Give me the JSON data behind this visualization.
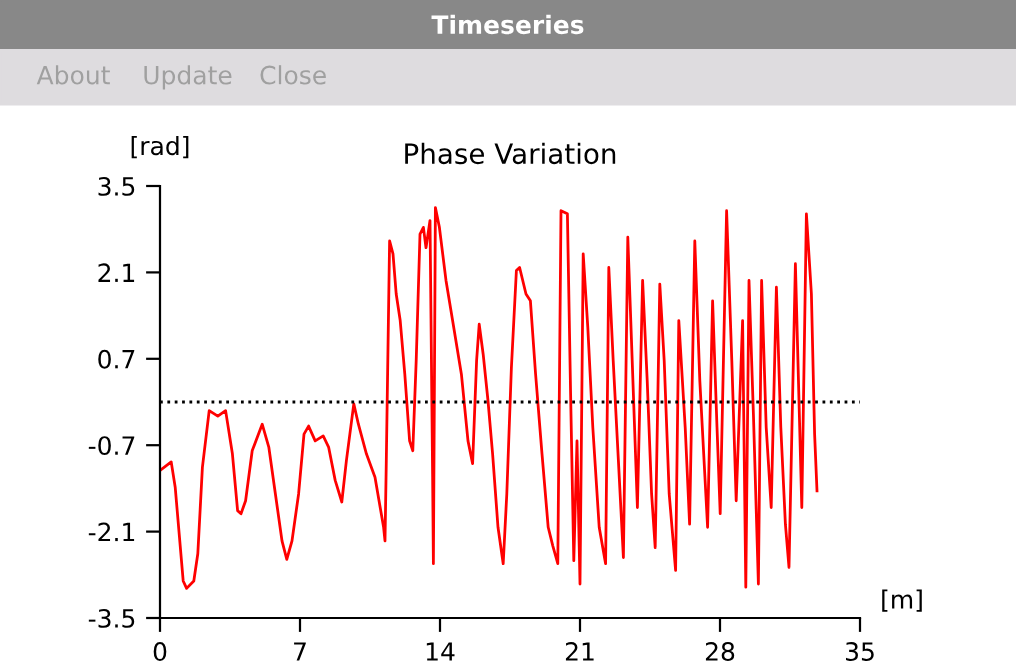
{
  "chart_data": {
    "type": "line",
    "title": "Phase Variation",
    "xlabel": "[m]",
    "ylabel": "[rad]",
    "annotations": [
      "Timeseries",
      "About",
      "Update",
      "Close"
    ],
    "xlim": [
      0,
      35
    ],
    "xticks": [
      0,
      7,
      14,
      21,
      28,
      35
    ],
    "ylim": [
      -3.5,
      3.5
    ],
    "yticks": [
      -3.5,
      -2.1,
      -0.7,
      0.7,
      2.1,
      3.5
    ],
    "grid": false,
    "legend": false,
    "marker": "none",
    "line_style": "solid",
    "ref_lines": [
      {
        "axis": "y",
        "value": 0,
        "color": "#000000",
        "line_style": "dotted"
      }
    ],
    "series": [
      {
        "color": "#ff0000",
        "x": [
          0,
          0.56,
          0.76,
          1.16,
          1.33,
          1.69,
          1.89,
          2.12,
          2.46,
          2.89,
          3.28,
          3.62,
          3.88,
          4.05,
          4.28,
          4.61,
          5.11,
          5.44,
          5.77,
          6.1,
          6.34,
          6.6,
          6.93,
          7.2,
          7.43,
          7.76,
          8.16,
          8.43,
          8.76,
          9.09,
          9.32,
          9.69,
          9.92,
          10.32,
          10.75,
          11.18,
          11.25,
          11.31,
          11.48,
          11.65,
          11.81,
          12.01,
          12.24,
          12.48,
          12.64,
          12.81,
          13.0,
          13.17,
          13.3,
          13.5,
          13.63,
          13.67,
          13.77,
          13.97,
          14.3,
          14.63,
          15.07,
          15.4,
          15.63,
          15.83,
          15.96,
          16.16,
          16.4,
          16.63,
          16.9,
          17.16,
          17.34,
          17.57,
          17.82,
          17.98,
          18.3,
          18.52,
          18.78,
          19.1,
          19.41,
          19.64,
          19.89,
          20.05,
          20.37,
          20.53,
          20.69,
          20.85,
          21.0,
          21.16,
          21.39,
          21.64,
          21.96,
          22.28,
          22.44,
          22.66,
          22.92,
          23.17,
          23.39,
          23.61,
          23.87,
          24.13,
          24.36,
          24.58,
          24.76,
          24.99,
          25.21,
          25.46,
          25.78,
          25.94,
          26.26,
          26.48,
          26.74,
          26.99,
          27.38,
          27.63,
          27.85,
          28.01,
          28.33,
          28.59,
          28.81,
          29.13,
          29.29,
          29.45,
          29.67,
          29.92,
          30.08,
          30.31,
          30.56,
          30.82,
          31.04,
          31.27,
          31.45,
          31.77,
          32.09,
          32.32,
          32.57,
          32.73,
          32.85
        ],
        "values": [
          -1.11,
          -0.97,
          -1.38,
          -2.9,
          -3.02,
          -2.9,
          -2.46,
          -1.06,
          -0.14,
          -0.23,
          -0.14,
          -0.84,
          -1.76,
          -1.81,
          -1.6,
          -0.79,
          -0.36,
          -0.73,
          -1.49,
          -2.25,
          -2.55,
          -2.25,
          -1.49,
          -0.52,
          -0.39,
          -0.63,
          -0.55,
          -0.73,
          -1.27,
          -1.62,
          -0.95,
          -0.03,
          -0.36,
          -0.84,
          -1.22,
          -2.03,
          -2.25,
          -1.06,
          2.61,
          2.4,
          1.75,
          1.32,
          0.45,
          -0.63,
          -0.79,
          0.67,
          2.72,
          2.83,
          2.5,
          2.94,
          -1.17,
          -2.62,
          3.15,
          2.83,
          1.97,
          1.32,
          0.45,
          -0.63,
          -1.0,
          0.67,
          1.26,
          0.77,
          0.02,
          -0.84,
          -2.03,
          -2.62,
          -1.49,
          0.56,
          2.13,
          2.18,
          1.75,
          1.64,
          0.45,
          -0.84,
          -2.03,
          -2.33,
          -2.62,
          3.1,
          3.05,
          0.13,
          -2.57,
          -0.63,
          -2.95,
          2.4,
          1.21,
          -0.41,
          -2.03,
          -2.62,
          2.18,
          0.67,
          -0.95,
          -2.52,
          2.67,
          0.67,
          -1.71,
          1.97,
          0.35,
          -1.49,
          -2.36,
          1.91,
          0.67,
          -1.49,
          -2.73,
          1.32,
          -0.41,
          -1.98,
          2.61,
          0.35,
          -2.03,
          1.64,
          -0.41,
          -1.81,
          3.1,
          0.67,
          -1.6,
          1.32,
          -3.0,
          1.97,
          -0.19,
          -2.95,
          1.97,
          -0.41,
          -1.71,
          1.86,
          -0.41,
          -1.98,
          -2.68,
          2.24,
          -1.71,
          3.05,
          1.75,
          -0.52,
          -1.44
        ]
      }
    ]
  }
}
